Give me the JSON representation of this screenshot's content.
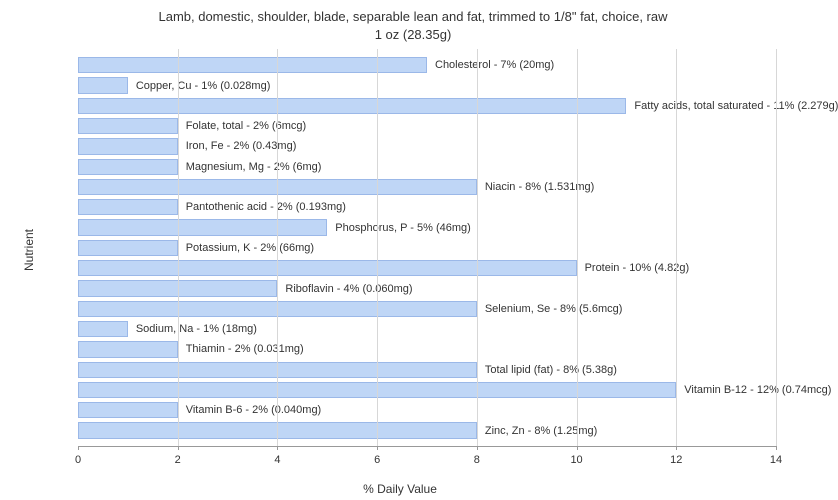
{
  "title_line1": "Lamb, domestic, shoulder, blade, separable lean and fat, trimmed to 1/8\" fat, choice, raw",
  "title_line2": "1 oz (28.35g)",
  "y_axis_label": "Nutrient",
  "x_axis_label": "% Daily Value",
  "xlim": [
    0,
    14
  ],
  "xtick_step": 2,
  "xticks": [
    0,
    2,
    4,
    6,
    8,
    10,
    12,
    14
  ],
  "tick_fontsize": 11,
  "label_fontsize": 12,
  "title_fontsize": 13,
  "background_color": "#ffffff",
  "grid_color": "#d7d7d7",
  "axis_color": "#999999",
  "bar_fill_color": "#bfd6f6",
  "bar_border_color": "#9bb8e8",
  "text_color": "#333333",
  "bars": [
    {
      "label": "Cholesterol - 7% (20mg)",
      "value": 7
    },
    {
      "label": "Copper, Cu - 1% (0.028mg)",
      "value": 1
    },
    {
      "label": "Fatty acids, total saturated - 11% (2.279g)",
      "value": 11
    },
    {
      "label": "Folate, total - 2% (6mcg)",
      "value": 2
    },
    {
      "label": "Iron, Fe - 2% (0.43mg)",
      "value": 2
    },
    {
      "label": "Magnesium, Mg - 2% (6mg)",
      "value": 2
    },
    {
      "label": "Niacin - 8% (1.531mg)",
      "value": 8
    },
    {
      "label": "Pantothenic acid - 2% (0.193mg)",
      "value": 2
    },
    {
      "label": "Phosphorus, P - 5% (46mg)",
      "value": 5
    },
    {
      "label": "Potassium, K - 2% (66mg)",
      "value": 2
    },
    {
      "label": "Protein - 10% (4.82g)",
      "value": 10
    },
    {
      "label": "Riboflavin - 4% (0.060mg)",
      "value": 4
    },
    {
      "label": "Selenium, Se - 8% (5.6mcg)",
      "value": 8
    },
    {
      "label": "Sodium, Na - 1% (18mg)",
      "value": 1
    },
    {
      "label": "Thiamin - 2% (0.031mg)",
      "value": 2
    },
    {
      "label": "Total lipid (fat) - 8% (5.38g)",
      "value": 8
    },
    {
      "label": "Vitamin B-12 - 12% (0.74mcg)",
      "value": 12
    },
    {
      "label": "Vitamin B-6 - 2% (0.040mg)",
      "value": 2
    },
    {
      "label": "Zinc, Zn - 8% (1.25mg)",
      "value": 8
    }
  ]
}
